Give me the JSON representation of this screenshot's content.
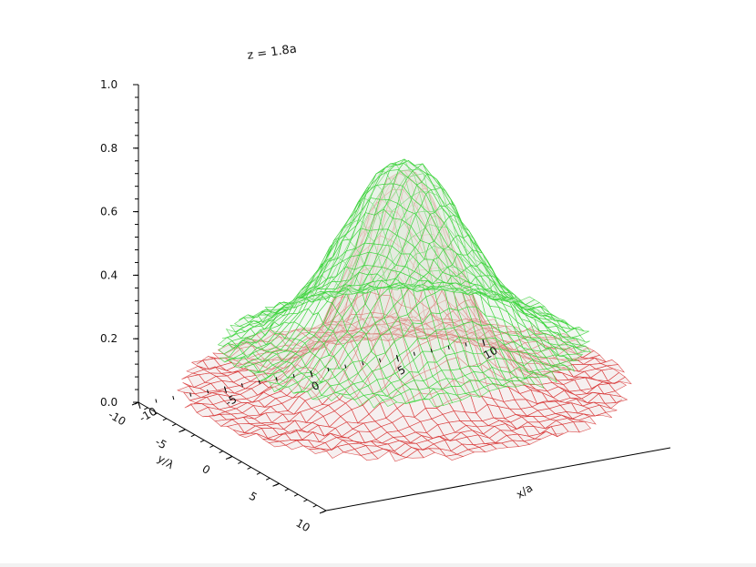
{
  "colors": {
    "background": "#ffffff",
    "green_surface": "#36d436",
    "green_fill": "#dfeedd",
    "red_surface": "#d83232",
    "red_fill": "#ecdcdc"
  },
  "chart_data": {
    "type": "surface3d",
    "title": "z = 1.8a",
    "xlabel": "x/a",
    "ylabel": "y/λ",
    "zlabel": "",
    "xlim": [
      -10,
      10
    ],
    "ylim": [
      -10,
      10
    ],
    "zlim": [
      0.0,
      1.0
    ],
    "x_ticks": [
      "-10",
      "-5",
      "0",
      "5",
      "10"
    ],
    "y_ticks": [
      "-10",
      "-5",
      "0",
      "5",
      "10"
    ],
    "z_ticks": [
      "0.0",
      "0.2",
      "0.4",
      "0.6",
      "0.8",
      "1.0"
    ],
    "grid": false,
    "series": [
      {
        "color": "green",
        "peak": 0.83,
        "floor": 0.24,
        "edge_radius": 9,
        "shape": "broad-peak"
      },
      {
        "color": "red",
        "peak": 0.8,
        "floor": 0.12,
        "edge_radius": 11,
        "shape": "narrow-peak"
      }
    ]
  }
}
